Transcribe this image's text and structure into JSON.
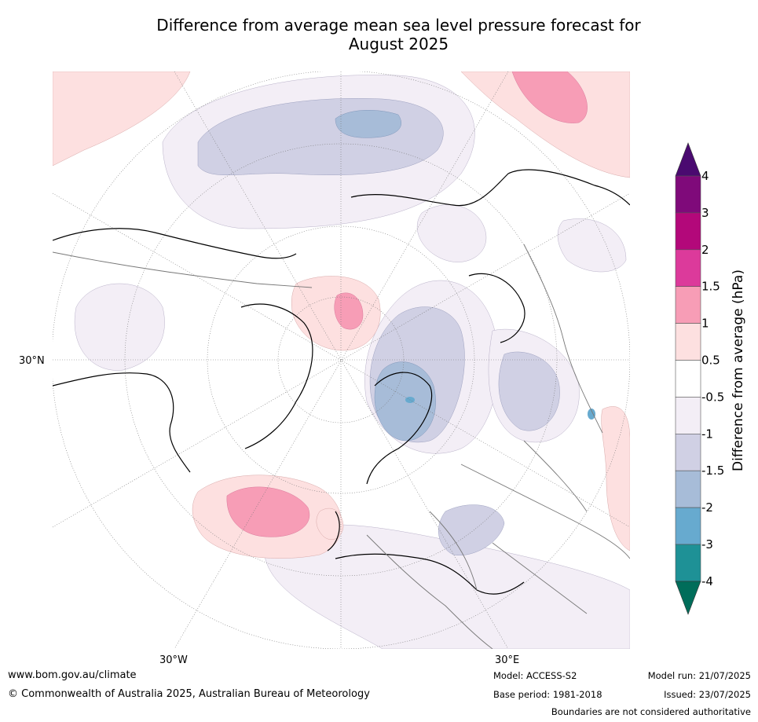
{
  "title": {
    "line1": "Difference from average mean sea level pressure forecast for",
    "line2": "August 2025"
  },
  "map": {
    "labels": {
      "lat_30n": "30°N",
      "lon_30w": "30°W",
      "lon_30e": "30°E"
    }
  },
  "colorbar": {
    "label": "Difference from average (hPa)",
    "ticks": [
      "4",
      "3",
      "2",
      "1.5",
      "1",
      "0.5",
      "-0.5",
      "-1",
      "-1.5",
      "-2",
      "-3",
      "-4"
    ],
    "colors": [
      "#4a0a70",
      "#7f0a7a",
      "#b3087a",
      "#dc3a9b",
      "#f79db6",
      "#fde0e0",
      "#ffffff",
      "#f3eef6",
      "#d0d0e4",
      "#a7bcd8",
      "#67aacf",
      "#1e9196",
      "#006d5a"
    ]
  },
  "footer": {
    "url": "www.bom.gov.au/climate",
    "copyright": "© Commonwealth of Australia 2025, Australian Bureau of Meteorology",
    "model": "Model: ACCESS-S2",
    "base_period": "Base period: 1981-2018",
    "model_run": "Model run: 21/07/2025",
    "issued": "Issued: 23/07/2025",
    "disclaimer": "Boundaries are not considered authoritative"
  }
}
